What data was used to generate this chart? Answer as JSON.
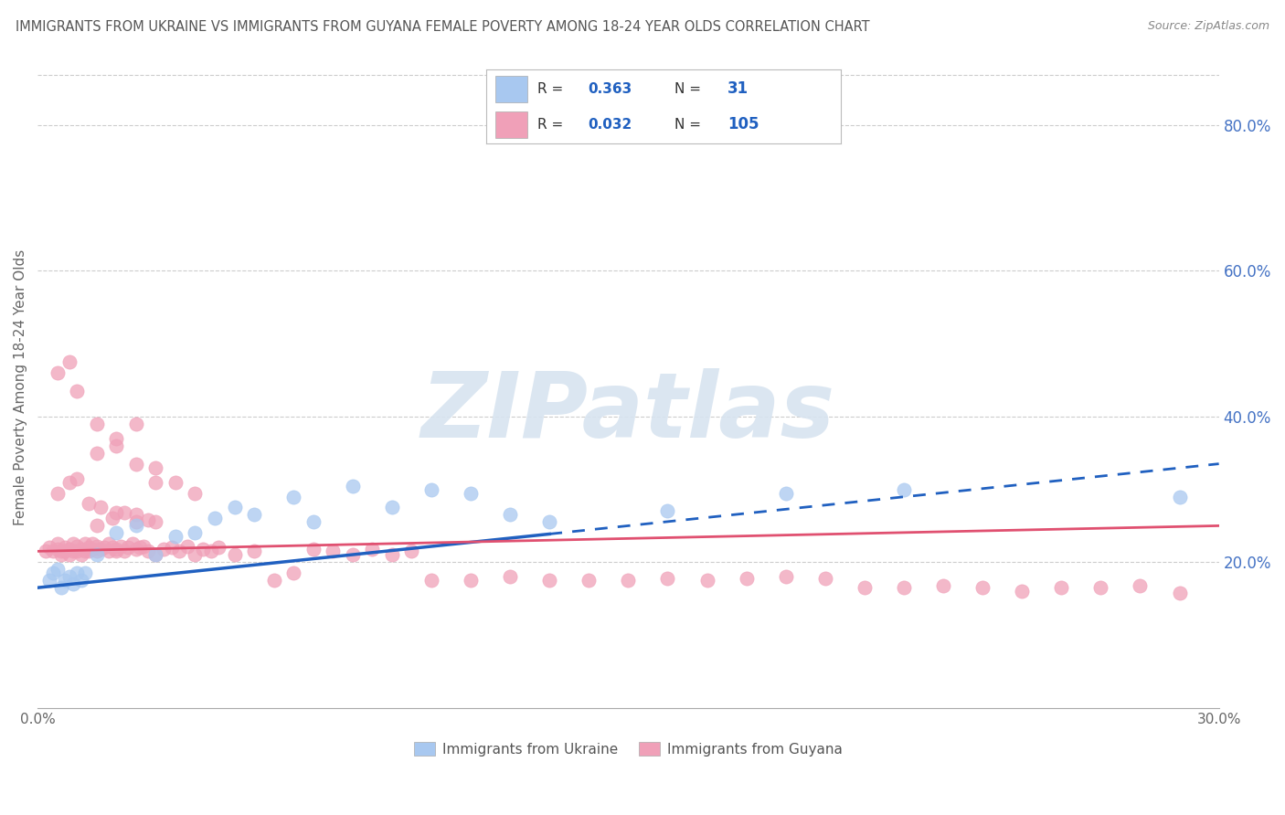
{
  "title": "IMMIGRANTS FROM UKRAINE VS IMMIGRANTS FROM GUYANA FEMALE POVERTY AMONG 18-24 YEAR OLDS CORRELATION CHART",
  "source": "Source: ZipAtlas.com",
  "xlabel_ukraine": "Immigrants from Ukraine",
  "xlabel_guyana": "Immigrants from Guyana",
  "ylabel": "Female Poverty Among 18-24 Year Olds",
  "ukraine_color": "#A8C8F0",
  "guyana_color": "#F0A0B8",
  "ukraine_trend_color": "#2060C0",
  "guyana_trend_color": "#E05070",
  "R_ukraine": 0.363,
  "N_ukraine": 31,
  "R_guyana": 0.032,
  "N_guyana": 105,
  "xlim": [
    0.0,
    0.3
  ],
  "ylim": [
    0.0,
    0.88
  ],
  "yticks": [
    0.2,
    0.4,
    0.6,
    0.8
  ],
  "watermark": "ZIPatlas",
  "background_color": "#FFFFFF",
  "ukraine_scatter_x": [
    0.003,
    0.004,
    0.005,
    0.006,
    0.007,
    0.008,
    0.009,
    0.01,
    0.011,
    0.012,
    0.015,
    0.02,
    0.025,
    0.03,
    0.035,
    0.04,
    0.045,
    0.05,
    0.055,
    0.065,
    0.07,
    0.08,
    0.09,
    0.1,
    0.11,
    0.12,
    0.13,
    0.16,
    0.19,
    0.22,
    0.29
  ],
  "ukraine_scatter_y": [
    0.175,
    0.185,
    0.19,
    0.165,
    0.175,
    0.18,
    0.17,
    0.185,
    0.175,
    0.185,
    0.21,
    0.24,
    0.25,
    0.21,
    0.235,
    0.24,
    0.26,
    0.275,
    0.265,
    0.29,
    0.255,
    0.305,
    0.275,
    0.3,
    0.295,
    0.265,
    0.255,
    0.27,
    0.295,
    0.3,
    0.29
  ],
  "guyana_scatter_x": [
    0.002,
    0.003,
    0.004,
    0.005,
    0.005,
    0.006,
    0.006,
    0.007,
    0.007,
    0.008,
    0.008,
    0.009,
    0.009,
    0.01,
    0.01,
    0.011,
    0.011,
    0.012,
    0.012,
    0.013,
    0.013,
    0.014,
    0.014,
    0.015,
    0.015,
    0.016,
    0.017,
    0.018,
    0.018,
    0.019,
    0.02,
    0.02,
    0.021,
    0.022,
    0.023,
    0.024,
    0.025,
    0.026,
    0.027,
    0.028,
    0.03,
    0.032,
    0.034,
    0.036,
    0.038,
    0.04,
    0.042,
    0.044,
    0.046,
    0.05,
    0.055,
    0.06,
    0.065,
    0.07,
    0.075,
    0.08,
    0.085,
    0.09,
    0.095,
    0.1,
    0.11,
    0.12,
    0.13,
    0.14,
    0.15,
    0.16,
    0.17,
    0.18,
    0.19,
    0.2,
    0.21,
    0.22,
    0.23,
    0.24,
    0.25,
    0.26,
    0.27,
    0.28,
    0.29,
    0.005,
    0.008,
    0.01,
    0.013,
    0.016,
    0.019,
    0.022,
    0.025,
    0.028,
    0.015,
    0.02,
    0.025,
    0.03,
    0.035,
    0.04,
    0.005,
    0.008,
    0.01,
    0.015,
    0.02,
    0.025,
    0.03,
    0.015,
    0.02,
    0.025,
    0.03
  ],
  "guyana_scatter_y": [
    0.215,
    0.22,
    0.215,
    0.218,
    0.225,
    0.21,
    0.215,
    0.22,
    0.215,
    0.21,
    0.218,
    0.215,
    0.225,
    0.222,
    0.215,
    0.21,
    0.218,
    0.215,
    0.225,
    0.22,
    0.215,
    0.218,
    0.225,
    0.222,
    0.215,
    0.218,
    0.22,
    0.225,
    0.215,
    0.22,
    0.215,
    0.218,
    0.222,
    0.215,
    0.22,
    0.225,
    0.218,
    0.22,
    0.222,
    0.215,
    0.21,
    0.218,
    0.22,
    0.215,
    0.222,
    0.21,
    0.218,
    0.215,
    0.22,
    0.21,
    0.215,
    0.175,
    0.185,
    0.218,
    0.215,
    0.21,
    0.218,
    0.21,
    0.215,
    0.175,
    0.175,
    0.18,
    0.175,
    0.175,
    0.175,
    0.178,
    0.175,
    0.178,
    0.18,
    0.178,
    0.165,
    0.165,
    0.168,
    0.165,
    0.16,
    0.165,
    0.165,
    0.168,
    0.158,
    0.295,
    0.31,
    0.315,
    0.28,
    0.275,
    0.26,
    0.268,
    0.255,
    0.258,
    0.35,
    0.37,
    0.39,
    0.33,
    0.31,
    0.295,
    0.46,
    0.475,
    0.435,
    0.39,
    0.36,
    0.335,
    0.31,
    0.25,
    0.268,
    0.265,
    0.255
  ],
  "ukraine_line_x_solid_start": 0.0,
  "ukraine_line_x_solid_end": 0.13,
  "ukraine_line_x_dash_start": 0.13,
  "ukraine_line_x_dash_end": 0.3,
  "ukraine_line_y_at_0": 0.165,
  "ukraine_line_y_at_030": 0.335,
  "guyana_line_y_at_0": 0.215,
  "guyana_line_y_at_030": 0.25
}
